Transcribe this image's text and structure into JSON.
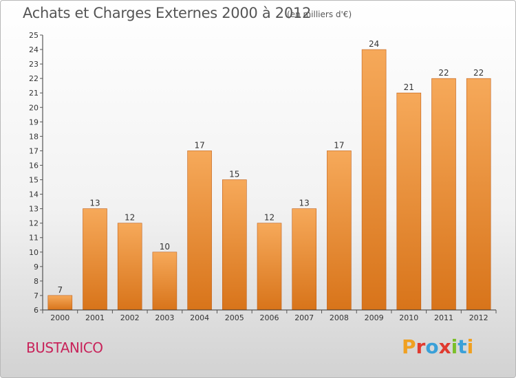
{
  "header": {
    "title": "Achats et Charges Externes 2000 à 2012",
    "subtitle": "(en milliers d'€)"
  },
  "footer": {
    "place": "BUSTANICO",
    "logo": "Proxiti",
    "logo_colors": [
      "#f0a020",
      "#e03a2f",
      "#3aa0d8",
      "#e03a2f",
      "#7bbf2a",
      "#3aa0d8",
      "#f0a020"
    ]
  },
  "colors": {
    "bar_top": "#f6a95a",
    "bar_bottom": "#d8741a",
    "bar_edge": "#c0601a",
    "axis": "#333333",
    "grid_tick": "#555555"
  },
  "chart_data": {
    "type": "bar",
    "title": "Achats et Charges Externes 2000 à 2012",
    "subtitle": "(en milliers d'€)",
    "categories": [
      "2000",
      "2001",
      "2002",
      "2003",
      "2004",
      "2005",
      "2006",
      "2007",
      "2008",
      "2009",
      "2010",
      "2011",
      "2012"
    ],
    "values": [
      7,
      13,
      12,
      10,
      17,
      15,
      12,
      13,
      17,
      24,
      21,
      22,
      22
    ],
    "ylim": [
      6,
      25
    ],
    "yticks": [
      6,
      7,
      8,
      9,
      10,
      11,
      12,
      13,
      14,
      15,
      16,
      17,
      18,
      19,
      20,
      21,
      22,
      23,
      24,
      25
    ],
    "data_labels": true,
    "grid": false
  }
}
